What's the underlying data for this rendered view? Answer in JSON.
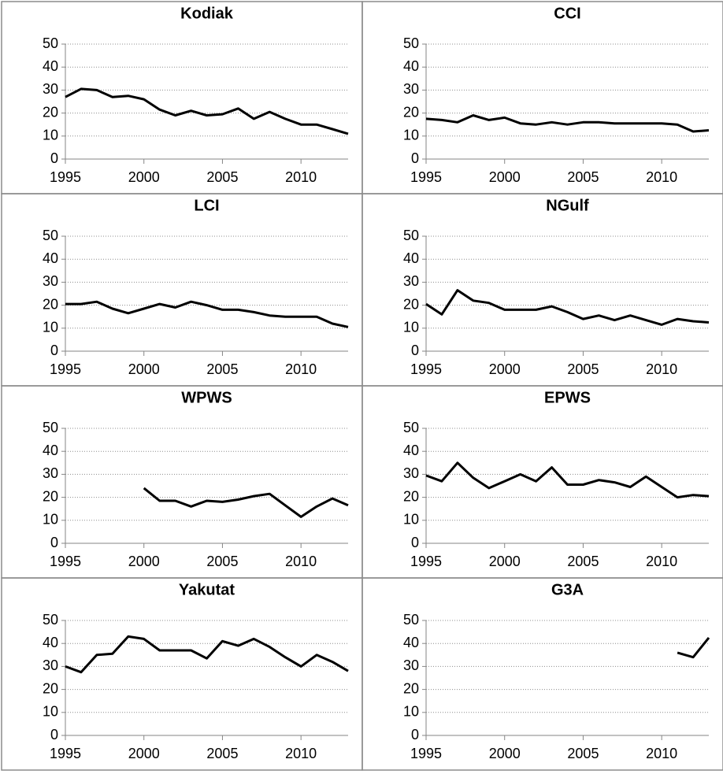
{
  "chart_data": [
    {
      "type": "line",
      "title": "Kodiak",
      "x": [
        1995,
        1996,
        1997,
        1998,
        1999,
        2000,
        2001,
        2002,
        2003,
        2004,
        2005,
        2006,
        2007,
        2008,
        2009,
        2010,
        2011,
        2012,
        2013
      ],
      "values": [
        27,
        30.5,
        30,
        27,
        27.5,
        26,
        21.5,
        19,
        21,
        19,
        19.5,
        22,
        17.5,
        20.5,
        17.5,
        15,
        15,
        13,
        11
      ],
      "color": "#000000",
      "xlim": [
        1995,
        2013
      ],
      "xticks": [
        1995,
        2000,
        2005,
        2010
      ],
      "ylim": [
        0,
        50
      ],
      "yticks": [
        0,
        10,
        20,
        30,
        40,
        50
      ],
      "grid": true
    },
    {
      "type": "line",
      "title": "CCI",
      "x": [
        1995,
        1996,
        1997,
        1998,
        1999,
        2000,
        2001,
        2002,
        2003,
        2004,
        2005,
        2006,
        2007,
        2008,
        2009,
        2010,
        2011,
        2012,
        2013
      ],
      "values": [
        17.5,
        17,
        16,
        19,
        17,
        18,
        15.5,
        15,
        16,
        15,
        16,
        16,
        15.5,
        15.5,
        15.5,
        15.5,
        15,
        12,
        12.5
      ],
      "color": "#000000",
      "xlim": [
        1995,
        2013
      ],
      "xticks": [
        1995,
        2000,
        2005,
        2010
      ],
      "ylim": [
        0,
        50
      ],
      "yticks": [
        0,
        10,
        20,
        30,
        40,
        50
      ],
      "grid": true
    },
    {
      "type": "line",
      "title": "LCI",
      "x": [
        1995,
        1996,
        1997,
        1998,
        1999,
        2000,
        2001,
        2002,
        2003,
        2004,
        2005,
        2006,
        2007,
        2008,
        2009,
        2010,
        2011,
        2012,
        2013
      ],
      "values": [
        20.5,
        20.5,
        21.5,
        18.5,
        16.5,
        18.5,
        20.5,
        19,
        21.5,
        20,
        18,
        18,
        17,
        15.5,
        15,
        15,
        15,
        12,
        10.5
      ],
      "color": "#000000",
      "xlim": [
        1995,
        2013
      ],
      "xticks": [
        1995,
        2000,
        2005,
        2010
      ],
      "ylim": [
        0,
        50
      ],
      "yticks": [
        0,
        10,
        20,
        30,
        40,
        50
      ],
      "grid": true
    },
    {
      "type": "line",
      "title": "NGulf",
      "x": [
        1995,
        1996,
        1997,
        1998,
        1999,
        2000,
        2001,
        2002,
        2003,
        2004,
        2005,
        2006,
        2007,
        2008,
        2009,
        2010,
        2011,
        2012,
        2013
      ],
      "values": [
        20.5,
        16,
        26.5,
        22,
        21,
        18,
        18,
        18,
        19.5,
        17,
        14,
        15.5,
        13.5,
        15.5,
        13.5,
        11.5,
        14,
        13,
        12.5
      ],
      "color": "#000000",
      "xlim": [
        1995,
        2013
      ],
      "xticks": [
        1995,
        2000,
        2005,
        2010
      ],
      "ylim": [
        0,
        50
      ],
      "yticks": [
        0,
        10,
        20,
        30,
        40,
        50
      ],
      "grid": true
    },
    {
      "type": "line",
      "title": "WPWS",
      "x": [
        1995,
        1996,
        1997,
        1998,
        1999,
        2000,
        2001,
        2002,
        2003,
        2004,
        2005,
        2006,
        2007,
        2008,
        2009,
        2010,
        2011,
        2012,
        2013
      ],
      "values": [
        null,
        null,
        null,
        null,
        null,
        24,
        18.5,
        18.5,
        16,
        18.5,
        18,
        19,
        20.5,
        21.5,
        16.5,
        11.5,
        16,
        19.5,
        16.5
      ],
      "color": "#000000",
      "xlim": [
        1995,
        2013
      ],
      "xticks": [
        1995,
        2000,
        2005,
        2010
      ],
      "ylim": [
        0,
        50
      ],
      "yticks": [
        0,
        10,
        20,
        30,
        40,
        50
      ],
      "grid": true
    },
    {
      "type": "line",
      "title": "EPWS",
      "x": [
        1995,
        1996,
        1997,
        1998,
        1999,
        2000,
        2001,
        2002,
        2003,
        2004,
        2005,
        2006,
        2007,
        2008,
        2009,
        2010,
        2011,
        2012,
        2013
      ],
      "values": [
        29.5,
        27,
        35,
        28.5,
        24,
        27,
        30,
        27,
        33,
        25.5,
        25.5,
        27.5,
        26.5,
        24.5,
        29,
        24.5,
        20,
        21,
        20.5
      ],
      "color": "#000000",
      "xlim": [
        1995,
        2013
      ],
      "xticks": [
        1995,
        2000,
        2005,
        2010
      ],
      "ylim": [
        0,
        50
      ],
      "yticks": [
        0,
        10,
        20,
        30,
        40,
        50
      ],
      "grid": true
    },
    {
      "type": "line",
      "title": "Yakutat",
      "x": [
        1995,
        1996,
        1997,
        1998,
        1999,
        2000,
        2001,
        2002,
        2003,
        2004,
        2005,
        2006,
        2007,
        2008,
        2009,
        2010,
        2011,
        2012,
        2013
      ],
      "values": [
        30,
        27.5,
        35,
        35.5,
        43,
        42,
        37,
        37,
        37,
        33.5,
        41,
        39,
        42,
        38.5,
        34,
        30,
        35,
        32,
        28
      ],
      "color": "#000000",
      "xlim": [
        1995,
        2013
      ],
      "xticks": [
        1995,
        2000,
        2005,
        2010
      ],
      "ylim": [
        0,
        50
      ],
      "yticks": [
        0,
        10,
        20,
        30,
        40,
        50
      ],
      "grid": true
    },
    {
      "type": "line",
      "title": "G3A",
      "x": [
        1995,
        1996,
        1997,
        1998,
        1999,
        2000,
        2001,
        2002,
        2003,
        2004,
        2005,
        2006,
        2007,
        2008,
        2009,
        2010,
        2011,
        2012,
        2013
      ],
      "values": [
        null,
        null,
        null,
        null,
        null,
        null,
        null,
        null,
        null,
        null,
        null,
        null,
        null,
        null,
        null,
        null,
        36,
        34,
        42.5
      ],
      "color": "#000000",
      "xlim": [
        1995,
        2013
      ],
      "xticks": [
        1995,
        2000,
        2005,
        2010
      ],
      "ylim": [
        0,
        50
      ],
      "yticks": [
        0,
        10,
        20,
        30,
        40,
        50
      ],
      "grid": true
    }
  ]
}
